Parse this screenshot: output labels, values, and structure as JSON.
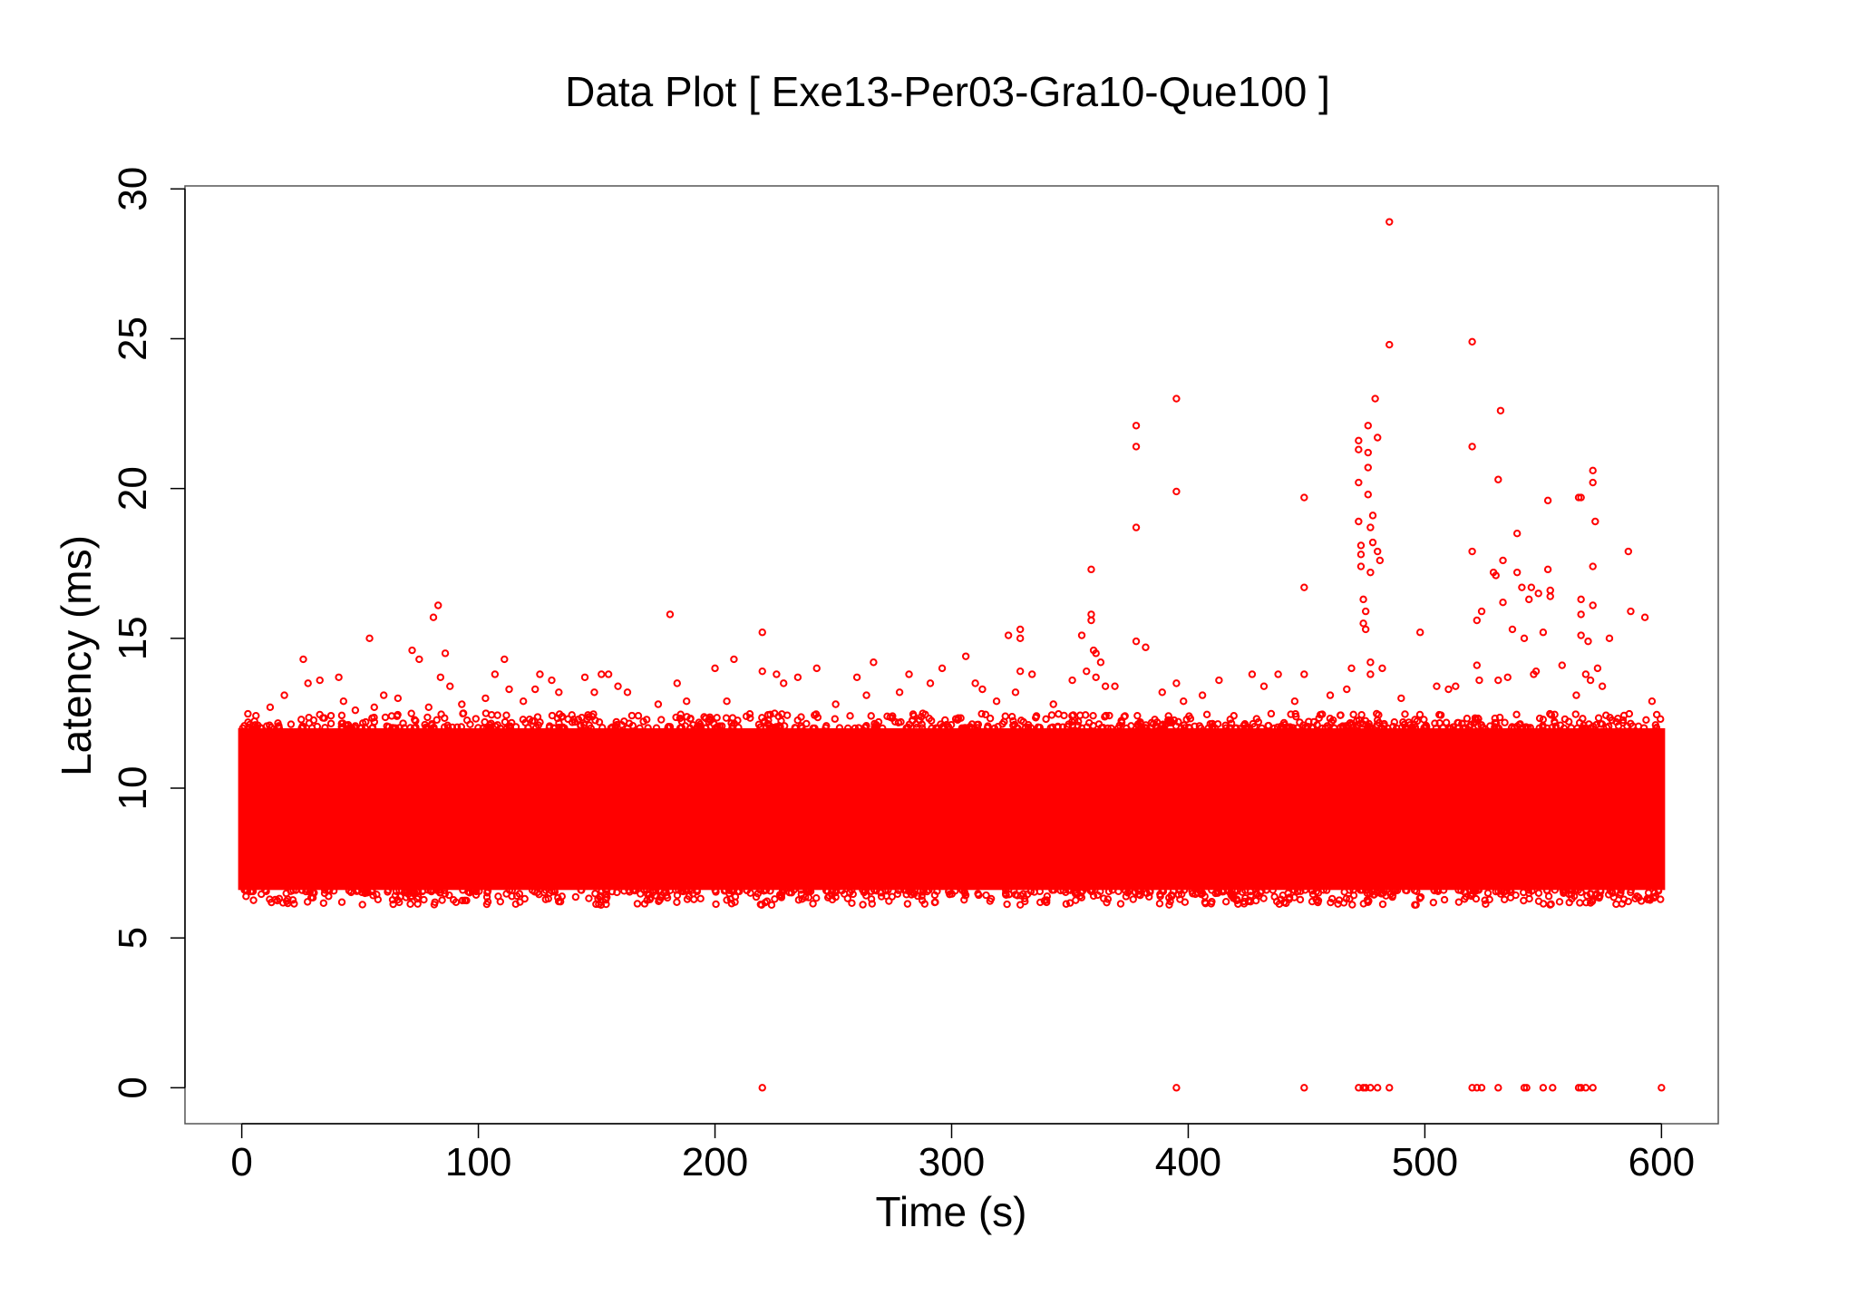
{
  "chart_data": {
    "type": "scatter",
    "title": "Data Plot [ Exe13-Per03-Gra10-Que100 ]",
    "xlabel": "Time (s)",
    "ylabel": "Latency (ms)",
    "xlim": [
      -24,
      624
    ],
    "ylim": [
      -1.2,
      30.1
    ],
    "x_ticks": [
      0,
      100,
      200,
      300,
      400,
      500,
      600
    ],
    "y_ticks": [
      0,
      5,
      10,
      15,
      20,
      25,
      30
    ],
    "x_tick_labels": [
      "0",
      "100",
      "200",
      "300",
      "400",
      "500",
      "600"
    ],
    "y_tick_labels": [
      "0",
      "5",
      "10",
      "15",
      "20",
      "25",
      "30"
    ],
    "grid": false,
    "legend": "none",
    "marker": "open-circle",
    "colors": {
      "series": "#ff0000",
      "axis": "#000000",
      "background": "#ffffff"
    },
    "series": [
      {
        "description": "dense band of latency samples across the whole run",
        "x_range": [
          0,
          600
        ],
        "y_range": [
          6.1,
          12.5
        ],
        "core_y_range": [
          6.6,
          12.0
        ]
      },
      {
        "description": "outlier samples above the band",
        "points": [
          [
            12,
            12.7
          ],
          [
            18,
            13.1
          ],
          [
            26,
            14.3
          ],
          [
            28,
            13.5
          ],
          [
            33,
            13.6
          ],
          [
            41,
            13.7
          ],
          [
            43,
            12.9
          ],
          [
            48,
            12.6
          ],
          [
            54,
            15.0
          ],
          [
            56,
            12.7
          ],
          [
            60,
            13.1
          ],
          [
            66,
            13.0
          ],
          [
            72,
            14.6
          ],
          [
            75,
            14.3
          ],
          [
            79,
            12.7
          ],
          [
            81,
            15.7
          ],
          [
            83,
            16.1
          ],
          [
            84,
            13.7
          ],
          [
            86,
            14.5
          ],
          [
            88,
            13.4
          ],
          [
            93,
            12.8
          ],
          [
            103,
            13.0
          ],
          [
            107,
            13.8
          ],
          [
            111,
            14.3
          ],
          [
            113,
            13.3
          ],
          [
            119,
            12.9
          ],
          [
            124,
            13.3
          ],
          [
            126,
            13.8
          ],
          [
            131,
            13.6
          ],
          [
            134,
            13.2
          ],
          [
            145,
            13.7
          ],
          [
            149,
            13.2
          ],
          [
            152,
            13.8
          ],
          [
            155,
            13.8
          ],
          [
            159,
            13.4
          ],
          [
            163,
            13.2
          ],
          [
            176,
            12.8
          ],
          [
            181,
            15.8
          ],
          [
            184,
            13.5
          ],
          [
            188,
            12.9
          ],
          [
            200,
            14.0
          ],
          [
            205,
            12.9
          ],
          [
            208,
            14.3
          ],
          [
            220,
            15.2
          ],
          [
            220,
            13.9
          ],
          [
            226,
            13.8
          ],
          [
            229,
            13.5
          ],
          [
            235,
            13.7
          ],
          [
            243,
            14.0
          ],
          [
            251,
            12.8
          ],
          [
            260,
            13.7
          ],
          [
            264,
            13.1
          ],
          [
            267,
            14.2
          ],
          [
            278,
            13.2
          ],
          [
            282,
            13.8
          ],
          [
            291,
            13.5
          ],
          [
            296,
            14.0
          ],
          [
            306,
            14.4
          ],
          [
            310,
            13.5
          ],
          [
            313,
            13.3
          ],
          [
            319,
            12.9
          ],
          [
            324,
            15.1
          ],
          [
            327,
            13.2
          ],
          [
            329,
            15.3
          ],
          [
            329,
            15.0
          ],
          [
            329,
            13.9
          ],
          [
            334,
            13.8
          ],
          [
            343,
            12.8
          ],
          [
            351,
            13.6
          ],
          [
            355,
            15.1
          ],
          [
            357,
            13.9
          ],
          [
            359,
            17.3
          ],
          [
            359,
            15.8
          ],
          [
            359,
            15.6
          ],
          [
            360,
            14.6
          ],
          [
            361,
            14.5
          ],
          [
            361,
            13.7
          ],
          [
            363,
            14.2
          ],
          [
            365,
            13.4
          ],
          [
            369,
            13.4
          ],
          [
            378,
            22.1
          ],
          [
            378,
            21.4
          ],
          [
            378,
            18.7
          ],
          [
            378,
            14.9
          ],
          [
            382,
            14.7
          ],
          [
            389,
            13.2
          ],
          [
            395,
            23.0
          ],
          [
            395,
            19.9
          ],
          [
            395,
            13.5
          ],
          [
            398,
            12.9
          ],
          [
            406,
            13.1
          ],
          [
            413,
            13.6
          ],
          [
            427,
            13.8
          ],
          [
            432,
            13.4
          ],
          [
            438,
            13.8
          ],
          [
            445,
            12.9
          ],
          [
            449,
            19.7
          ],
          [
            449,
            16.7
          ],
          [
            449,
            13.8
          ],
          [
            460,
            13.1
          ],
          [
            467,
            13.3
          ],
          [
            469,
            14.0
          ],
          [
            472,
            21.6
          ],
          [
            472,
            21.3
          ],
          [
            472,
            20.2
          ],
          [
            472,
            18.9
          ],
          [
            473,
            18.1
          ],
          [
            473,
            17.8
          ],
          [
            473,
            17.4
          ],
          [
            474,
            16.3
          ],
          [
            474,
            15.5
          ],
          [
            475,
            15.9
          ],
          [
            475,
            15.3
          ],
          [
            476,
            22.1
          ],
          [
            476,
            21.2
          ],
          [
            476,
            20.7
          ],
          [
            476,
            19.8
          ],
          [
            477,
            18.7
          ],
          [
            477,
            17.2
          ],
          [
            477,
            14.2
          ],
          [
            477,
            13.8
          ],
          [
            478,
            19.1
          ],
          [
            478,
            18.2
          ],
          [
            479,
            23.0
          ],
          [
            480,
            21.7
          ],
          [
            480,
            17.9
          ],
          [
            481,
            17.6
          ],
          [
            482,
            14.0
          ],
          [
            485,
            28.9
          ],
          [
            485,
            24.8
          ],
          [
            490,
            13.0
          ],
          [
            498,
            15.2
          ],
          [
            505,
            13.4
          ],
          [
            510,
            13.3
          ],
          [
            513,
            13.4
          ],
          [
            520,
            24.9
          ],
          [
            520,
            21.4
          ],
          [
            520,
            17.9
          ],
          [
            522,
            15.6
          ],
          [
            522,
            14.1
          ],
          [
            523,
            13.6
          ],
          [
            524,
            15.9
          ],
          [
            529,
            17.2
          ],
          [
            530,
            17.1
          ],
          [
            531,
            20.3
          ],
          [
            531,
            13.6
          ],
          [
            532,
            22.6
          ],
          [
            533,
            17.6
          ],
          [
            533,
            16.2
          ],
          [
            535,
            13.7
          ],
          [
            537,
            15.3
          ],
          [
            539,
            18.5
          ],
          [
            539,
            17.2
          ],
          [
            541,
            16.7
          ],
          [
            542,
            15.0
          ],
          [
            544,
            16.3
          ],
          [
            545,
            16.7
          ],
          [
            546,
            13.8
          ],
          [
            547,
            13.9
          ],
          [
            548,
            16.5
          ],
          [
            550,
            15.2
          ],
          [
            552,
            19.6
          ],
          [
            552,
            17.3
          ],
          [
            553,
            16.4
          ],
          [
            553,
            16.6
          ],
          [
            558,
            14.1
          ],
          [
            564,
            13.1
          ],
          [
            565,
            19.7
          ],
          [
            566,
            19.7
          ],
          [
            566,
            16.3
          ],
          [
            566,
            15.8
          ],
          [
            566,
            15.1
          ],
          [
            568,
            13.8
          ],
          [
            569,
            14.9
          ],
          [
            570,
            13.6
          ],
          [
            571,
            20.6
          ],
          [
            571,
            20.2
          ],
          [
            571,
            17.4
          ],
          [
            571,
            16.1
          ],
          [
            572,
            18.9
          ],
          [
            573,
            14.0
          ],
          [
            575,
            13.4
          ],
          [
            578,
            15.0
          ],
          [
            586,
            17.9
          ],
          [
            587,
            15.9
          ],
          [
            593,
            15.7
          ],
          [
            596,
            12.9
          ]
        ]
      },
      {
        "description": "samples at zero latency",
        "points": [
          [
            220,
            0
          ],
          [
            395,
            0
          ],
          [
            449,
            0
          ],
          [
            472,
            0
          ],
          [
            474,
            0
          ],
          [
            475,
            0
          ],
          [
            477,
            0
          ],
          [
            480,
            0
          ],
          [
            485,
            0
          ],
          [
            520,
            0
          ],
          [
            522,
            0
          ],
          [
            524,
            0
          ],
          [
            531,
            0
          ],
          [
            542,
            0
          ],
          [
            543,
            0
          ],
          [
            550,
            0
          ],
          [
            554,
            0
          ],
          [
            565,
            0
          ],
          [
            566,
            0
          ],
          [
            568,
            0
          ],
          [
            571,
            0
          ],
          [
            600,
            0
          ]
        ]
      }
    ]
  }
}
